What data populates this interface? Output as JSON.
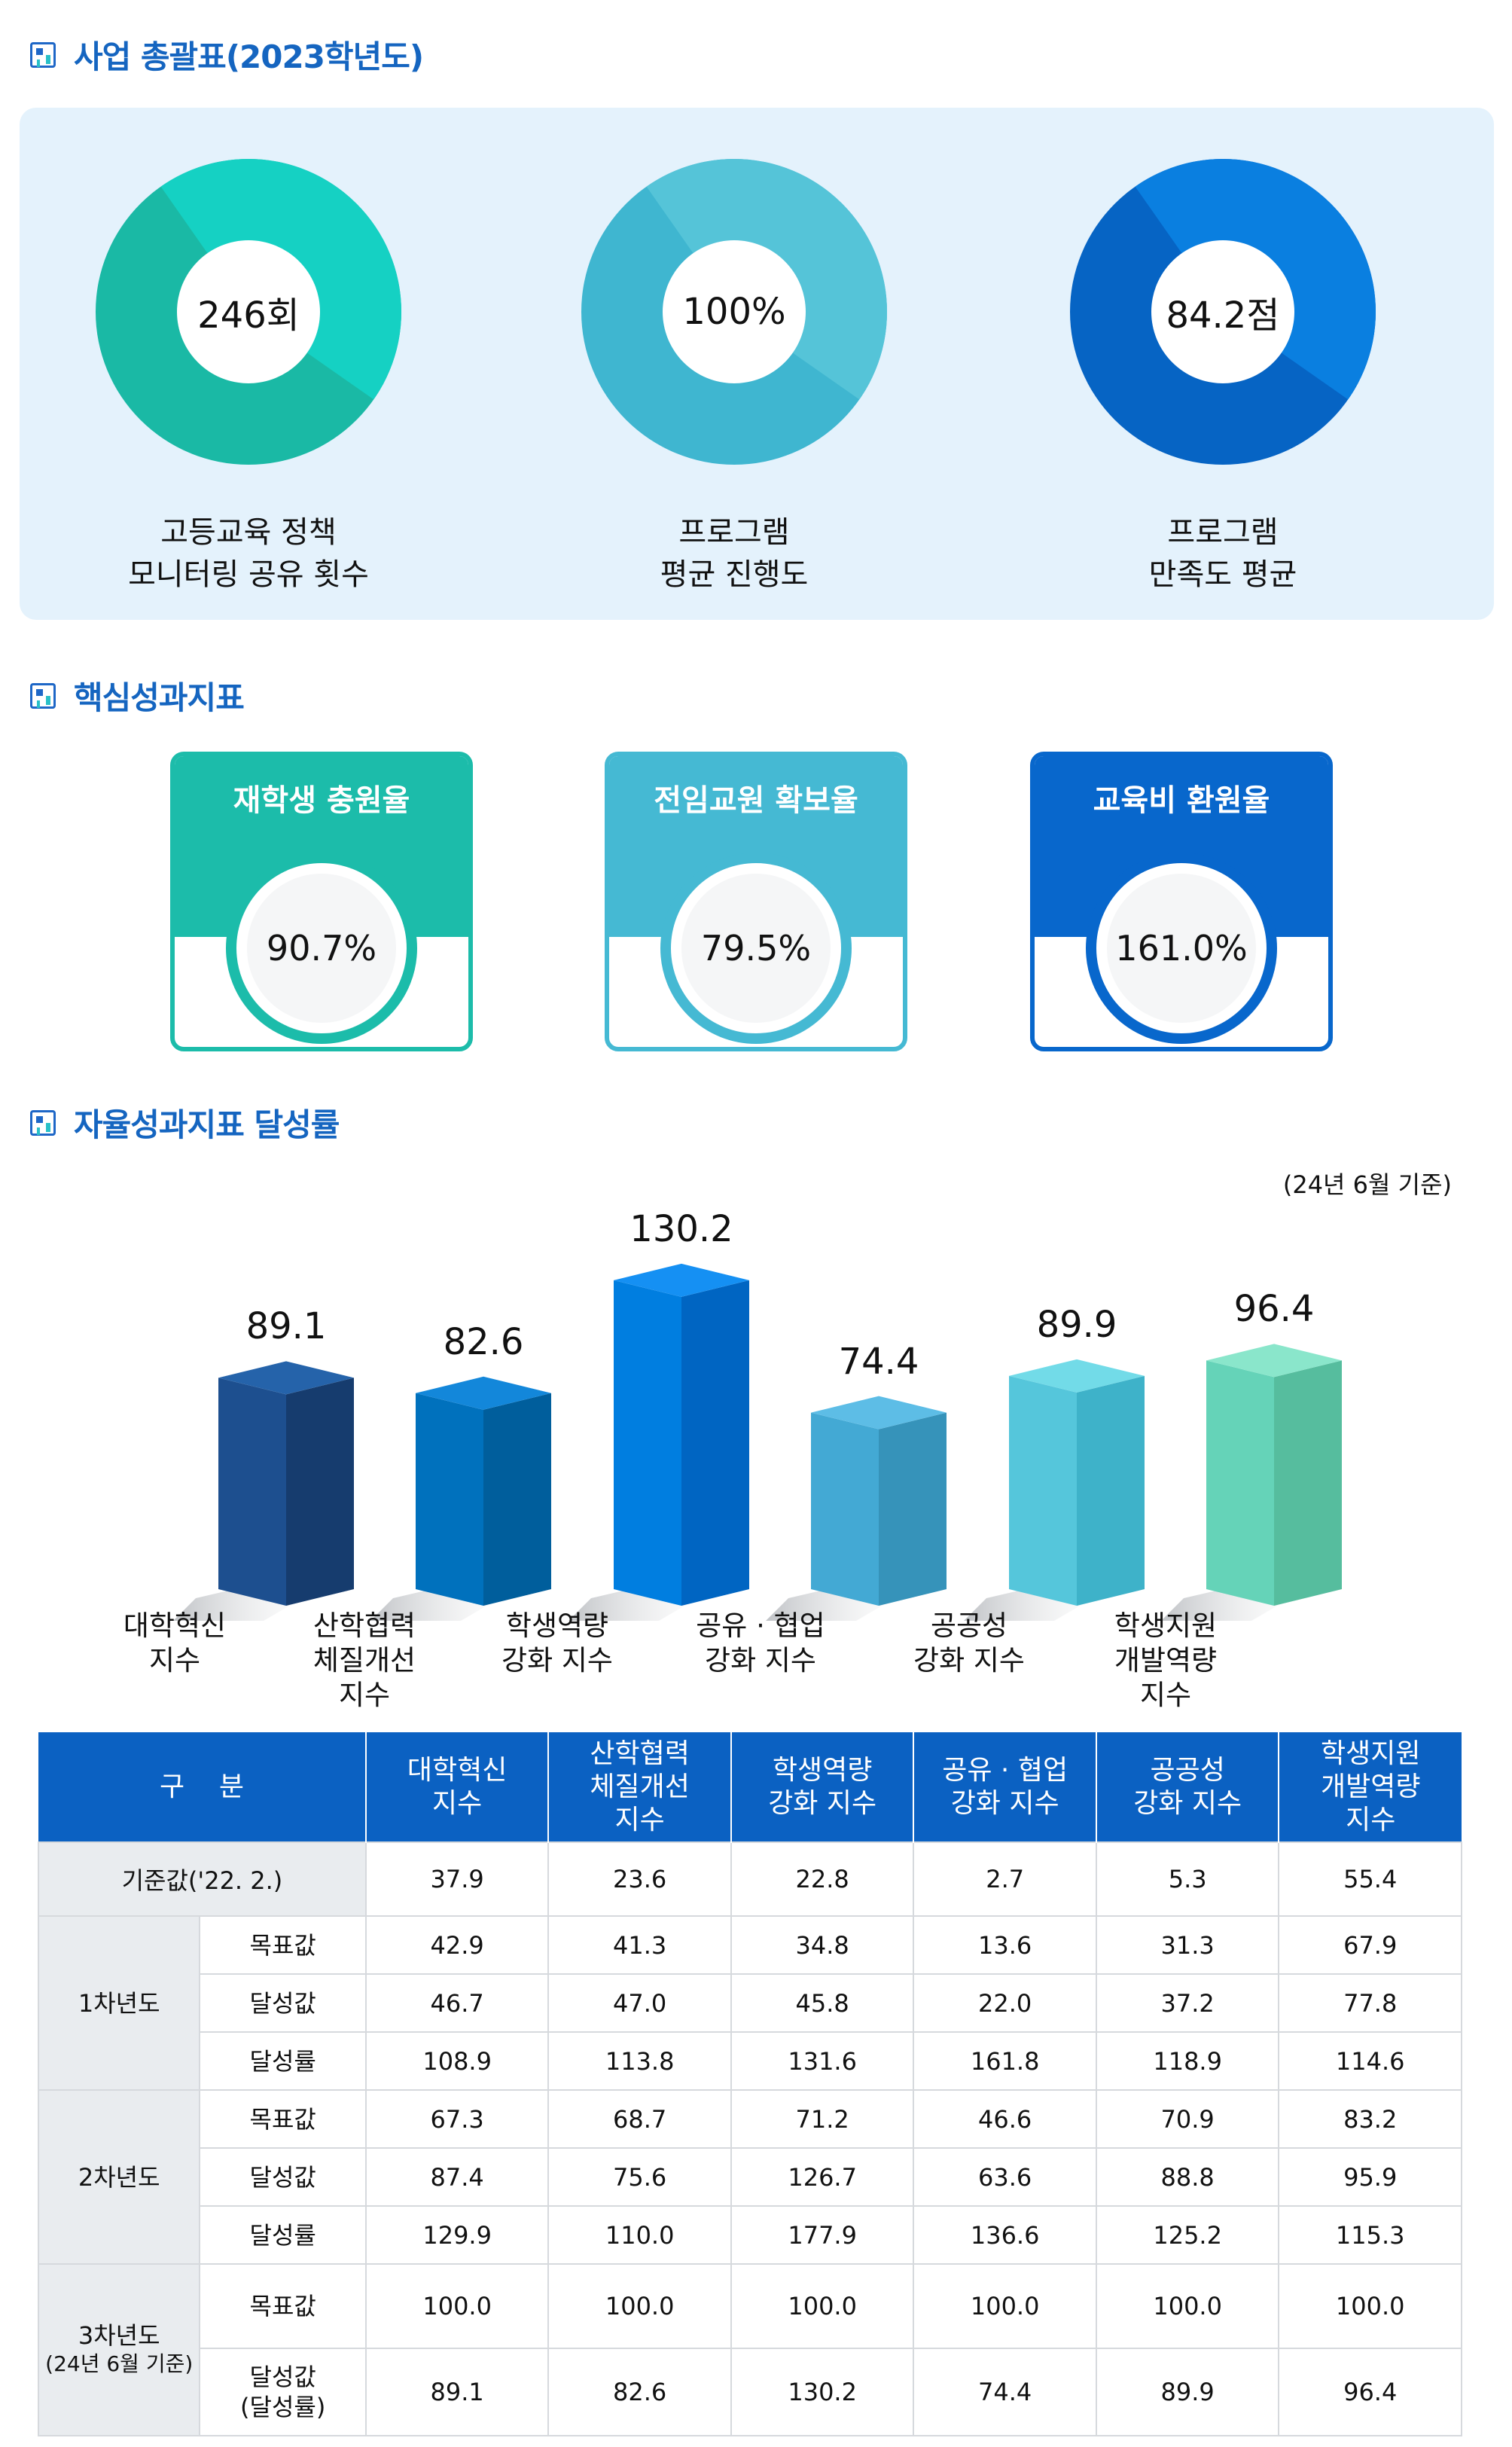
{
  "sections": {
    "summary_title": "사업 총괄표(2023학년도)",
    "kpi_title": "핵심성과지표",
    "achievement_title": "자율성과지표 달성률"
  },
  "summary": [
    {
      "value": "246회",
      "label_line1": "고등교육 정책",
      "label_line2": "모니터링 공유 횟수",
      "color_light": "#15d1c3",
      "color_dark": "#1ab9a5"
    },
    {
      "value": "100%",
      "label_line1": "프로그램",
      "label_line2": "평균 진행도",
      "color_light": "#55c4d8",
      "color_dark": "#3fb6d0"
    },
    {
      "value": "84.2점",
      "label_line1": "프로그램",
      "label_line2": "만족도 평균",
      "color_light": "#0a7fe0",
      "color_dark": "#0664c4"
    }
  ],
  "kpi": [
    {
      "title": "재학생 충원율",
      "value": "90.7%",
      "color": "#1cbcaa"
    },
    {
      "title": "전임교원 확보율",
      "value": "79.5%",
      "color": "#45b9d3"
    },
    {
      "title": "교육비 환원율",
      "value": "161.0%",
      "color": "#0867cc"
    }
  ],
  "chart_data": {
    "type": "bar",
    "note": "(24년 6월 기준)",
    "categories": [
      [
        "대학혁신",
        "지수"
      ],
      [
        "산학협력",
        "체질개선",
        "지수"
      ],
      [
        "학생역량",
        "강화 지수"
      ],
      [
        "공유 · 협업",
        "강화 지수"
      ],
      [
        "공공성",
        "강화 지수"
      ],
      [
        "학생지원",
        "개발역량",
        "지수"
      ]
    ],
    "values": [
      89.1,
      82.6,
      130.2,
      74.4,
      89.9,
      96.4
    ],
    "value_labels": [
      "89.1",
      "82.6",
      "130.2",
      "74.4",
      "89.9",
      "96.4"
    ],
    "colors": [
      {
        "front": "#1d4f8f",
        "side": "#163c6e",
        "top": "#2563aa"
      },
      {
        "front": "#0071bd",
        "side": "#005e9c",
        "top": "#1387da"
      },
      {
        "front": "#007ee0",
        "side": "#0065c2",
        "top": "#1590f3"
      },
      {
        "front": "#43a9d4",
        "side": "#3693ba",
        "top": "#5dbde6"
      },
      {
        "front": "#55c6db",
        "side": "#3eb2c9",
        "top": "#72dbe8"
      },
      {
        "front": "#65d3b8",
        "side": "#56bd9e",
        "top": "#8ae6cb"
      }
    ]
  },
  "table": {
    "header_label": "구    분",
    "columns": [
      [
        "대학혁신",
        "지수"
      ],
      [
        "산학협력",
        "체질개선",
        "지수"
      ],
      [
        "학생역량",
        "강화 지수"
      ],
      [
        "공유 · 협업",
        "강화 지수"
      ],
      [
        "공공성",
        "강화 지수"
      ],
      [
        "학생지원",
        "개발역량",
        "지수"
      ]
    ],
    "baseline": {
      "label": "기준값('22. 2.)",
      "values": [
        "37.9",
        "23.6",
        "22.8",
        "2.7",
        "5.3",
        "55.4"
      ]
    },
    "groups": [
      {
        "label": [
          "1차년도"
        ],
        "rows": [
          {
            "label": [
              "목표값"
            ],
            "values": [
              "42.9",
              "41.3",
              "34.8",
              "13.6",
              "31.3",
              "67.9"
            ]
          },
          {
            "label": [
              "달성값"
            ],
            "values": [
              "46.7",
              "47.0",
              "45.8",
              "22.0",
              "37.2",
              "77.8"
            ]
          },
          {
            "label": [
              "달성률"
            ],
            "values": [
              "108.9",
              "113.8",
              "131.6",
              "161.8",
              "118.9",
              "114.6"
            ]
          }
        ]
      },
      {
        "label": [
          "2차년도"
        ],
        "rows": [
          {
            "label": [
              "목표값"
            ],
            "values": [
              "67.3",
              "68.7",
              "71.2",
              "46.6",
              "70.9",
              "83.2"
            ]
          },
          {
            "label": [
              "달성값"
            ],
            "values": [
              "87.4",
              "75.6",
              "126.7",
              "63.6",
              "88.8",
              "95.9"
            ]
          },
          {
            "label": [
              "달성률"
            ],
            "values": [
              "129.9",
              "110.0",
              "177.9",
              "136.6",
              "125.2",
              "115.3"
            ]
          }
        ]
      },
      {
        "label": [
          "3차년도",
          "(24년 6월 기준)"
        ],
        "rows": [
          {
            "label": [
              "목표값"
            ],
            "values": [
              "100.0",
              "100.0",
              "100.0",
              "100.0",
              "100.0",
              "100.0"
            ]
          },
          {
            "label": [
              "달성값",
              "(달성률)"
            ],
            "values": [
              "89.1",
              "82.6",
              "130.2",
              "74.4",
              "89.9",
              "96.4"
            ]
          }
        ]
      }
    ]
  }
}
